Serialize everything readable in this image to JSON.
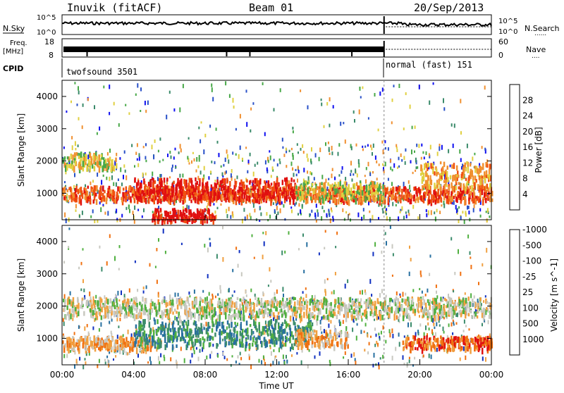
{
  "header": {
    "station": "Inuvik (fitACF)",
    "beam": "Beam 01",
    "date": "20/Sep/2013"
  },
  "noise_panel": {
    "left_label": "N.Sky",
    "left_ticks": [
      "10^5",
      "10^0"
    ],
    "right_ticks": [
      "10^5",
      "10^0"
    ],
    "right_label": "N.Search",
    "right_marker": "......"
  },
  "freq_panel": {
    "left_label_line1": "Freq.",
    "left_label_line2": "[MHz]",
    "left_ticks": [
      "18",
      "8"
    ],
    "right_ticks": [
      "60",
      "0"
    ],
    "right_label": "Nave",
    "right_marker": "...."
  },
  "cpid_panel": {
    "label": "CPID",
    "segments": [
      {
        "name": "twofsound 3501",
        "start_hour": 0,
        "end_hour": 18.0
      },
      {
        "name": "normal (fast) 151",
        "start_hour": 18.0,
        "end_hour": 24
      }
    ]
  },
  "time_axis": {
    "label": "Time UT",
    "ticks": [
      "00:00",
      "04:00",
      "08:00",
      "12:00",
      "16:00",
      "20:00",
      "00:00"
    ],
    "tick_hours": [
      0,
      4,
      8,
      12,
      16,
      20,
      24
    ]
  },
  "chart_data": [
    {
      "type": "heatmap",
      "name": "power",
      "ylabel": "Slant Range [km]",
      "yticks": [
        "1000",
        "2000",
        "3000",
        "4000"
      ],
      "ytick_values": [
        1000,
        2000,
        3000,
        4000
      ],
      "ylim": [
        180,
        4500
      ],
      "xlim_hours": [
        0,
        24
      ],
      "colorbar_label": "Power [dB]",
      "colorbar_ticks": [
        "4",
        "8",
        "12",
        "16",
        "20",
        "24",
        "28"
      ],
      "colorbar_colors": [
        "#1010f0",
        "#2850c8",
        "#3a8a6a",
        "#48a848",
        "#e0d040",
        "#f09030",
        "#f05010",
        "#e01010"
      ],
      "bands": [
        {
          "t0": 0,
          "t1": 24,
          "r0": 800,
          "r1": 1250,
          "level": 6
        },
        {
          "t0": 4,
          "t1": 13,
          "r0": 900,
          "r1": 1500,
          "level": 7
        },
        {
          "t0": 5,
          "t1": 8.5,
          "r0": 200,
          "r1": 550,
          "level": 7
        },
        {
          "t0": 13,
          "t1": 18,
          "r0": 850,
          "r1": 1400,
          "level": 4
        },
        {
          "t0": 0,
          "t1": 3,
          "r0": 1800,
          "r1": 2300,
          "level": 4
        },
        {
          "t0": 20,
          "t1": 24,
          "r0": 1200,
          "r1": 2000,
          "level": 5
        }
      ]
    },
    {
      "type": "heatmap",
      "name": "velocity",
      "ylabel": "Slant Range [km]",
      "yticks": [
        "1000",
        "2000",
        "3000",
        "4000"
      ],
      "ytick_values": [
        1000,
        2000,
        3000,
        4000
      ],
      "ylim": [
        180,
        4500
      ],
      "xlim_hours": [
        0,
        24
      ],
      "colorbar_label": "Velocity [m s^-1]",
      "colorbar_ticks": [
        "1000",
        "500",
        "100",
        "25",
        "-25",
        "-100",
        "-500",
        "-1000"
      ],
      "colorbar_colors": [
        "#1030c0",
        "#2870a0",
        "#3c8c6c",
        "#50b040",
        "#c8c8c0",
        "#f0a040",
        "#f07010",
        "#e01010"
      ],
      "bands": [
        {
          "t0": 0,
          "t1": 5,
          "r0": 700,
          "r1": 1100,
          "level": 5
        },
        {
          "t0": 4,
          "t1": 14,
          "r0": 800,
          "r1": 1600,
          "level": 2
        },
        {
          "t0": 0,
          "t1": 24,
          "r0": 1700,
          "r1": 2300,
          "level": 4
        },
        {
          "t0": 13,
          "t1": 16,
          "r0": 800,
          "r1": 1300,
          "level": 5
        },
        {
          "t0": 19,
          "t1": 24,
          "r0": 700,
          "r1": 1100,
          "level": 6
        }
      ]
    }
  ]
}
